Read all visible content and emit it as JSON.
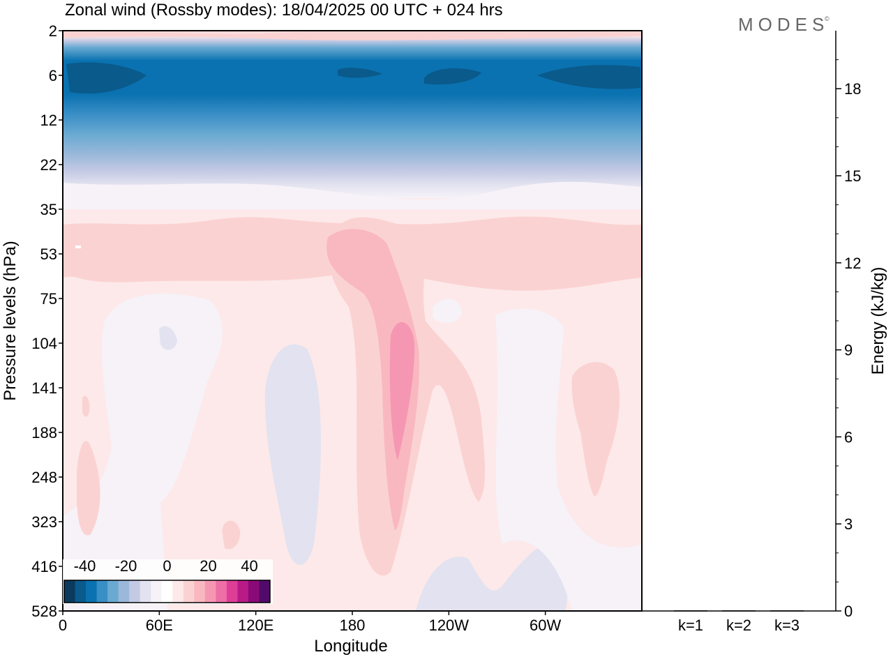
{
  "chart_data": [
    {
      "type": "heatmap",
      "title": "Zonal wind (Rossby modes):  18/04/2025  00 UTC  + 024 hrs",
      "brand": "MODES",
      "xlabel": "Longitude",
      "ylabel": "Pressure levels (hPa)",
      "x_ticks": [
        "0",
        "60E",
        "120E",
        "180",
        "120W",
        "60W"
      ],
      "y_ticks": [
        "2",
        "6",
        "12",
        "22",
        "35",
        "53",
        "75",
        "104",
        "141",
        "188",
        "248",
        "323",
        "416",
        "528"
      ],
      "colorbar": {
        "tick_labels": [
          "-40",
          "-20",
          "0",
          "20",
          "40"
        ],
        "tick_values": [
          -40,
          -20,
          0,
          20,
          40
        ],
        "range": [
          -50,
          50
        ],
        "colors": [
          "#0b3a5e",
          "#0a5a8c",
          "#0a72b0",
          "#3a8ec6",
          "#6aaad2",
          "#9ab8da",
          "#c4cae4",
          "#e2e2f0",
          "#f6f2f8",
          "#ffffff",
          "#fde9e9",
          "#fbd2d2",
          "#f9b8c0",
          "#f597b3",
          "#ee6ea6",
          "#de3e96",
          "#b81a86",
          "#8a0a78",
          "#520a6a"
        ]
      },
      "contour_regions": [
        {
          "level": 4,
          "color": "#fde9e9"
        },
        {
          "level": 8,
          "color": "#fbd2d2"
        },
        {
          "level": 12,
          "color": "#f9b8c0"
        },
        {
          "level": 16,
          "color": "#f597b3"
        },
        {
          "level": -4,
          "color": "#e2e2f0"
        },
        {
          "level": -30,
          "color": "#0a72b0"
        },
        {
          "level": -40,
          "color": "#0a5a8c"
        }
      ]
    },
    {
      "type": "bar",
      "ylabel": "Energy (kJ/kg)",
      "categories": [
        "k=1",
        "k=2",
        "k=3"
      ],
      "values": [
        0.02,
        0.02,
        0.02
      ],
      "ylim": [
        0,
        20
      ],
      "y_ticks": [
        0,
        3,
        6,
        9,
        12,
        15,
        18
      ]
    }
  ]
}
